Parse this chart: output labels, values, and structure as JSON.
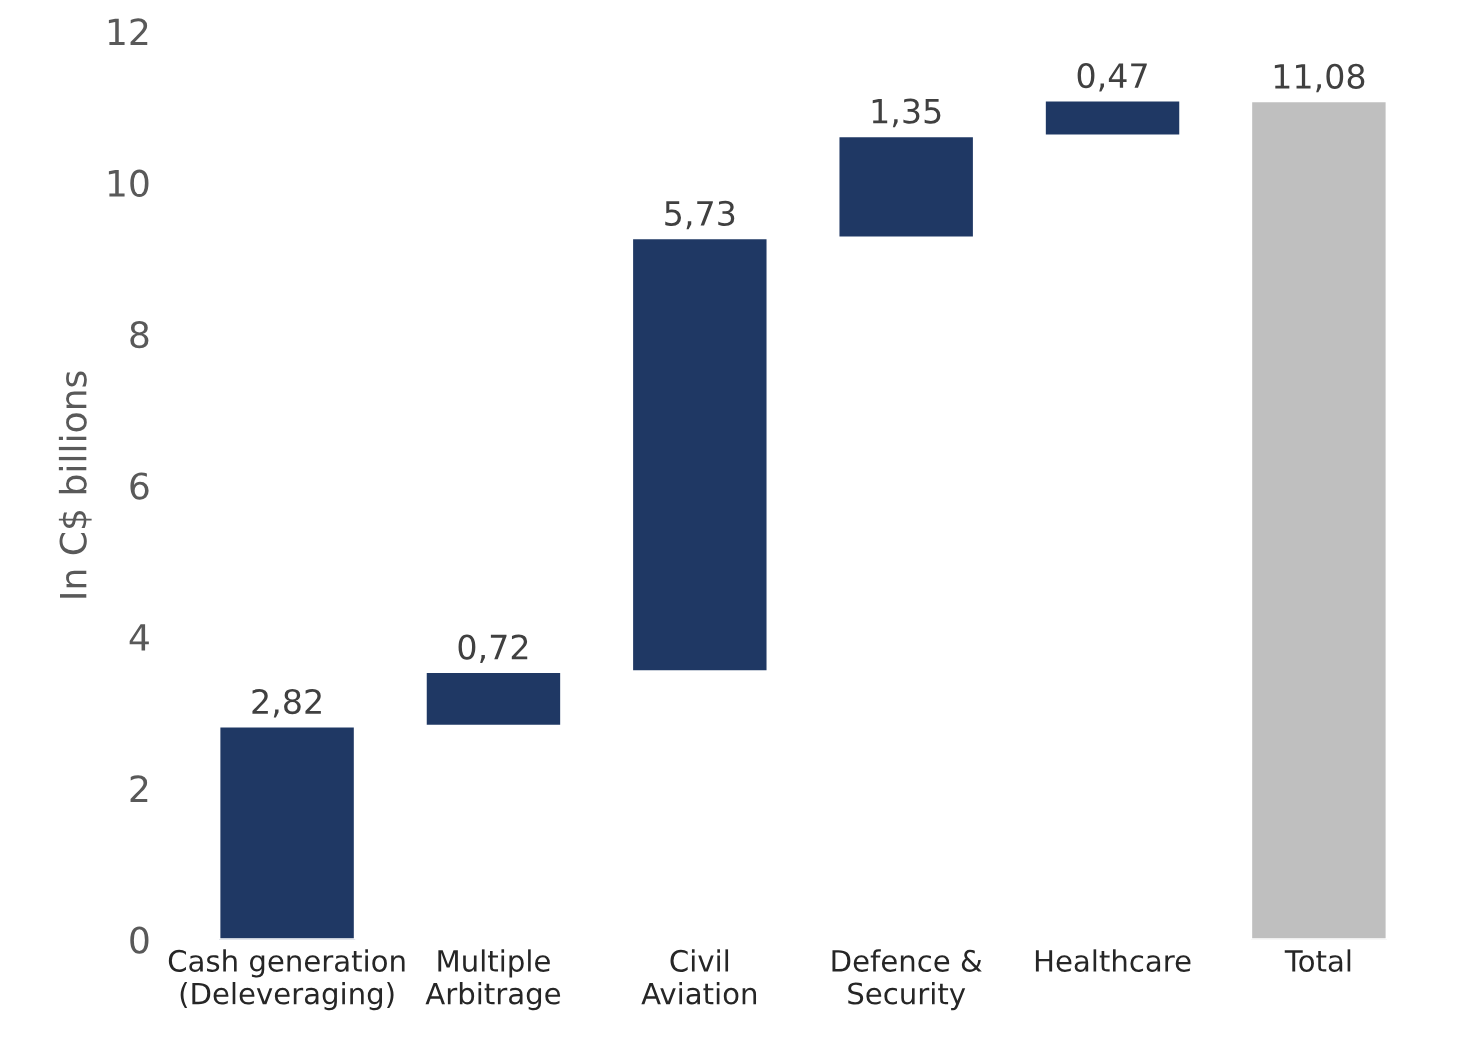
{
  "chart_data": {
    "type": "bar",
    "ylabel": "In C$ billions",
    "categories": [
      "Cash generation\n(Deleveraging)",
      "Multiple\nArbitrage",
      "Civil\nAviation",
      "Defence &\nSecurity",
      "Healthcare",
      "Total"
    ],
    "values": [
      2.82,
      0.72,
      5.73,
      1.35,
      0.47,
      11.08
    ],
    "base": [
      0,
      2.82,
      3.54,
      9.27,
      10.62,
      0
    ],
    "colors": [
      "#1f3864",
      "#1f3864",
      "#1f3864",
      "#1f3864",
      "#1f3864",
      "#bfbfbf"
    ],
    "value_labels": [
      "2,82",
      "0,72",
      "5,73",
      "1,35",
      "0,47",
      "11,08"
    ],
    "ylim": [
      0,
      12
    ],
    "yticks": [
      0,
      2,
      4,
      6,
      8,
      10,
      12
    ],
    "grid": false
  }
}
